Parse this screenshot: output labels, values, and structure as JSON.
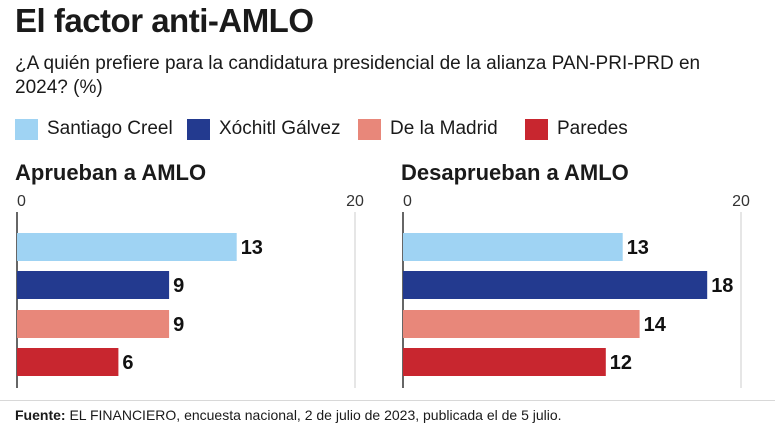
{
  "title": "El factor anti-AMLO",
  "subtitle": "¿A quién prefiere para la candidatura presidencial de la alianza PAN-PRI-PRD en 2024? (%)",
  "legend": [
    {
      "label": "Santiago Creel",
      "color": "#9fd3f3"
    },
    {
      "label": "Xóchitl Gálvez",
      "color": "#233a8f"
    },
    {
      "label": "De la Madrid",
      "color": "#e8877a"
    },
    {
      "label": "Paredes",
      "color": "#c8262f"
    }
  ],
  "chart_data": [
    {
      "type": "bar",
      "orientation": "horizontal",
      "title": "Aprueban a AMLO",
      "categories": [
        "Santiago Creel",
        "Xóchitl Gálvez",
        "De la Madrid",
        "Paredes"
      ],
      "values": [
        13,
        9,
        9,
        6
      ],
      "xlim": [
        0,
        20
      ],
      "ticks": [
        "0",
        "20"
      ],
      "grid": true
    },
    {
      "type": "bar",
      "orientation": "horizontal",
      "title": "Desaprueban a AMLO",
      "categories": [
        "Santiago Creel",
        "Xóchitl Gálvez",
        "De la Madrid",
        "Paredes"
      ],
      "values": [
        13,
        18,
        14,
        12
      ],
      "xlim": [
        0,
        20
      ],
      "ticks": [
        "0",
        "20"
      ],
      "grid": true
    }
  ],
  "footer": {
    "label": "Fuente:",
    "text": "EL FINANCIERO, encuesta nacional, 2 de julio de 2023, publicada el de 5 julio."
  }
}
